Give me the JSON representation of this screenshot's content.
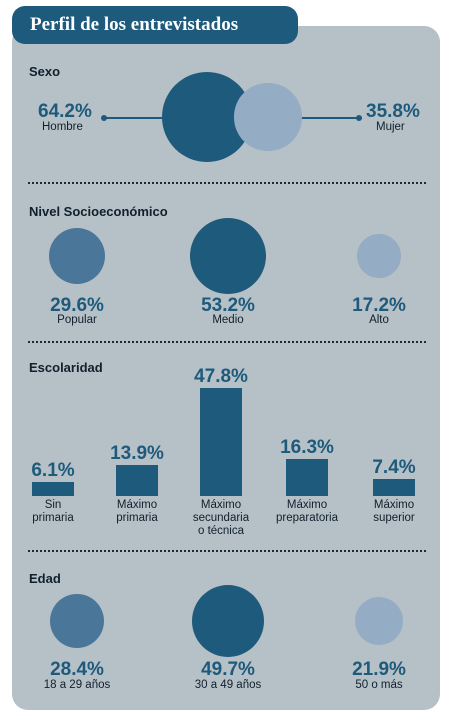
{
  "title": "Perfil de los entrevistados",
  "colors": {
    "dark": "#1d5a7b",
    "mid": "#4a7799",
    "light": "#94adc4",
    "panel": "#b6c0c7"
  },
  "chart_data": [
    {
      "type": "bubble",
      "title": "Sexo",
      "categories": [
        "Hombre",
        "Mujer"
      ],
      "values": [
        64.2,
        35.8
      ],
      "value_labels": [
        "64.2%",
        "35.8%"
      ]
    },
    {
      "type": "bubble",
      "title": "Nivel Socioeconómico",
      "categories": [
        "Popular",
        "Medio",
        "Alto"
      ],
      "values": [
        29.6,
        53.2,
        17.2
      ],
      "value_labels": [
        "29.6%",
        "53.2%",
        "17.2%"
      ]
    },
    {
      "type": "bar",
      "title": "Escolaridad",
      "categories": [
        "Sin primaria",
        "Máximo primaria",
        "Máximo secundaria o técnica",
        "Máximo preparatoria",
        "Máximo superior"
      ],
      "category_lines": [
        [
          "Sin",
          "primaria"
        ],
        [
          "Máximo",
          "primaria"
        ],
        [
          "Máximo",
          "secundaria",
          "o técnica"
        ],
        [
          "Máximo",
          "preparatoria"
        ],
        [
          "Máximo",
          "superior"
        ]
      ],
      "values": [
        6.1,
        13.9,
        47.8,
        16.3,
        7.4
      ],
      "value_labels": [
        "6.1%",
        "13.9%",
        "47.8%",
        "16.3%",
        "7.4%"
      ]
    },
    {
      "type": "bubble",
      "title": "Edad",
      "categories": [
        "18 a 29 años",
        "30 a 49 años",
        "50 o más"
      ],
      "values": [
        28.4,
        49.7,
        21.9
      ],
      "value_labels": [
        "28.4%",
        "49.7%",
        "21.9%"
      ]
    }
  ]
}
